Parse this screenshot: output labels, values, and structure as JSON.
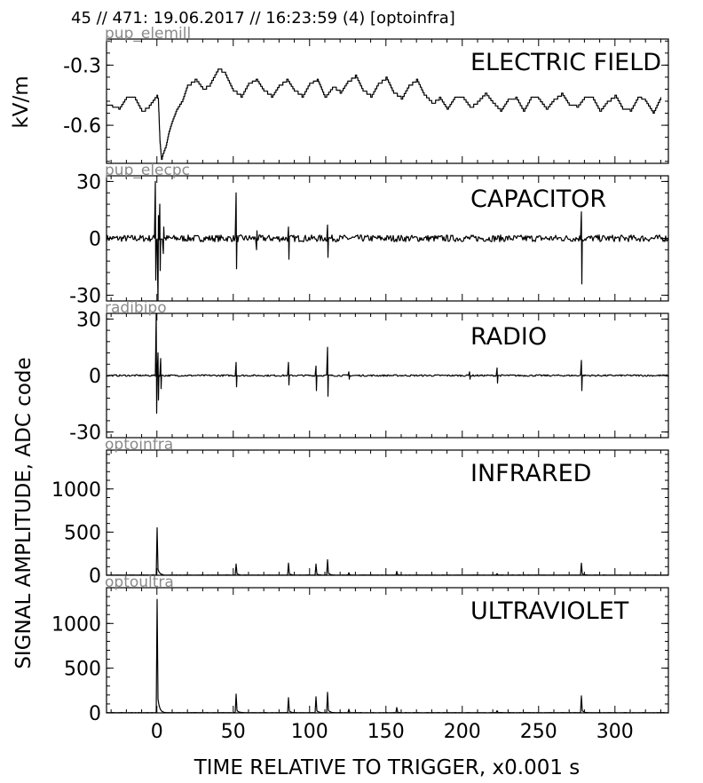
{
  "header": "45 // 471:   19.06.2017 // 16:23:59 (4)  [optoinfra]",
  "ylabel_left_top": "kV/m",
  "ylabel_left_main": "SIGNAL AMPLITUDE,  ADC code",
  "chart_data": {
    "type": "line",
    "xlabel": "TIME RELATIVE TO TRIGGER,   x0.001 s",
    "xlim": [
      -33,
      335
    ],
    "xticks": [
      0,
      50,
      100,
      150,
      200,
      250,
      300
    ],
    "panels": [
      {
        "tag": "pup_elemill",
        "title": "ELECTRIC FIELD",
        "ylim": [
          -0.79,
          -0.17
        ],
        "yticks": [
          -0.3,
          -0.6
        ],
        "ytick_labels": [
          "-0.3",
          "-0.6"
        ],
        "x": [
          -33,
          -25,
          -20,
          -15,
          -10,
          -5,
          0,
          1,
          2,
          3,
          4,
          6,
          8,
          10,
          13,
          17,
          20,
          25,
          30,
          35,
          40,
          45,
          50,
          55,
          60,
          65,
          70,
          75,
          80,
          85,
          90,
          95,
          100,
          105,
          110,
          115,
          120,
          125,
          130,
          135,
          140,
          145,
          150,
          155,
          160,
          165,
          170,
          175,
          180,
          185,
          190,
          195,
          200,
          205,
          210,
          215,
          220,
          225,
          230,
          235,
          240,
          245,
          250,
          255,
          260,
          265,
          270,
          275,
          280,
          285,
          290,
          295,
          300,
          305,
          310,
          315,
          320,
          325,
          330
        ],
        "y": [
          -0.5,
          -0.52,
          -0.46,
          -0.46,
          -0.53,
          -0.5,
          -0.45,
          -0.48,
          -0.68,
          -0.77,
          -0.74,
          -0.7,
          -0.63,
          -0.58,
          -0.52,
          -0.47,
          -0.4,
          -0.37,
          -0.42,
          -0.39,
          -0.32,
          -0.35,
          -0.43,
          -0.46,
          -0.39,
          -0.37,
          -0.43,
          -0.46,
          -0.4,
          -0.37,
          -0.43,
          -0.46,
          -0.39,
          -0.37,
          -0.46,
          -0.41,
          -0.44,
          -0.38,
          -0.35,
          -0.43,
          -0.46,
          -0.39,
          -0.36,
          -0.44,
          -0.47,
          -0.4,
          -0.37,
          -0.45,
          -0.49,
          -0.46,
          -0.52,
          -0.46,
          -0.46,
          -0.51,
          -0.48,
          -0.44,
          -0.49,
          -0.53,
          -0.47,
          -0.46,
          -0.53,
          -0.46,
          -0.47,
          -0.52,
          -0.47,
          -0.44,
          -0.5,
          -0.51,
          -0.46,
          -0.46,
          -0.53,
          -0.48,
          -0.45,
          -0.52,
          -0.53,
          -0.46,
          -0.48,
          -0.54,
          -0.46
        ]
      },
      {
        "tag": "pup_elecpc",
        "title": "CAPACITOR",
        "ylim": [
          -33,
          33
        ],
        "yticks": [
          30,
          0,
          -30
        ],
        "ytick_labels": [
          "30",
          "0",
          "-30"
        ],
        "noise": 1.2,
        "spikes": [
          {
            "x": -1,
            "y": 30,
            "y2": -22
          },
          {
            "x": 0.5,
            "y": -33,
            "y2": 12
          },
          {
            "x": 2,
            "y": 18,
            "y2": -17
          },
          {
            "x": 4,
            "y": -8,
            "y2": 6
          },
          {
            "x": 52,
            "y": 24,
            "y2": -16
          },
          {
            "x": 65,
            "y": -6,
            "y2": 4
          },
          {
            "x": 86,
            "y": 6,
            "y2": -11
          },
          {
            "x": 112,
            "y": 7,
            "y2": -10
          },
          {
            "x": 278,
            "y": 14,
            "y2": -24
          }
        ]
      },
      {
        "tag": "radibipo",
        "title": "RADIO",
        "ylim": [
          -33,
          33
        ],
        "yticks": [
          30,
          0,
          -30
        ],
        "ytick_labels": [
          "30",
          "0",
          "-30"
        ],
        "noise": 0.3,
        "spikes": [
          {
            "x": -0.5,
            "y": 33,
            "y2": -20
          },
          {
            "x": 1,
            "y": 12,
            "y2": -13
          },
          {
            "x": 2.5,
            "y": 9,
            "y2": -7
          },
          {
            "x": 52,
            "y": 7,
            "y2": -6
          },
          {
            "x": 86,
            "y": 7,
            "y2": -5
          },
          {
            "x": 104,
            "y": 5,
            "y2": -8
          },
          {
            "x": 112,
            "y": 15,
            "y2": -11
          },
          {
            "x": 126,
            "y": 2,
            "y2": -2
          },
          {
            "x": 205,
            "y": 2,
            "y2": -2
          },
          {
            "x": 223,
            "y": 4,
            "y2": -4
          },
          {
            "x": 278,
            "y": 8,
            "y2": -8
          }
        ]
      },
      {
        "tag": "optoinfra",
        "title": "INFRARED",
        "ylim": [
          0,
          1450
        ],
        "yticks": [
          1000,
          500,
          0
        ],
        "ytick_labels": [
          "1000",
          "500",
          "0"
        ],
        "peaks": [
          {
            "x": 0,
            "y": 550
          },
          {
            "x": 52,
            "y": 130
          },
          {
            "x": 86,
            "y": 140
          },
          {
            "x": 104,
            "y": 130
          },
          {
            "x": 112,
            "y": 180
          },
          {
            "x": 126,
            "y": 30
          },
          {
            "x": 157,
            "y": 45
          },
          {
            "x": 223,
            "y": 20
          },
          {
            "x": 278,
            "y": 140
          }
        ]
      },
      {
        "tag": "optoultra",
        "title": "ULTRAVIOLET",
        "ylim": [
          0,
          1400
        ],
        "yticks": [
          1000,
          500,
          0
        ],
        "ytick_labels": [
          "1000",
          "500",
          "0"
        ],
        "peaks": [
          {
            "x": 0,
            "y": 1270
          },
          {
            "x": 52,
            "y": 210
          },
          {
            "x": 86,
            "y": 170
          },
          {
            "x": 104,
            "y": 180
          },
          {
            "x": 112,
            "y": 230
          },
          {
            "x": 126,
            "y": 40
          },
          {
            "x": 157,
            "y": 60
          },
          {
            "x": 223,
            "y": 25
          },
          {
            "x": 278,
            "y": 190
          }
        ]
      }
    ]
  }
}
